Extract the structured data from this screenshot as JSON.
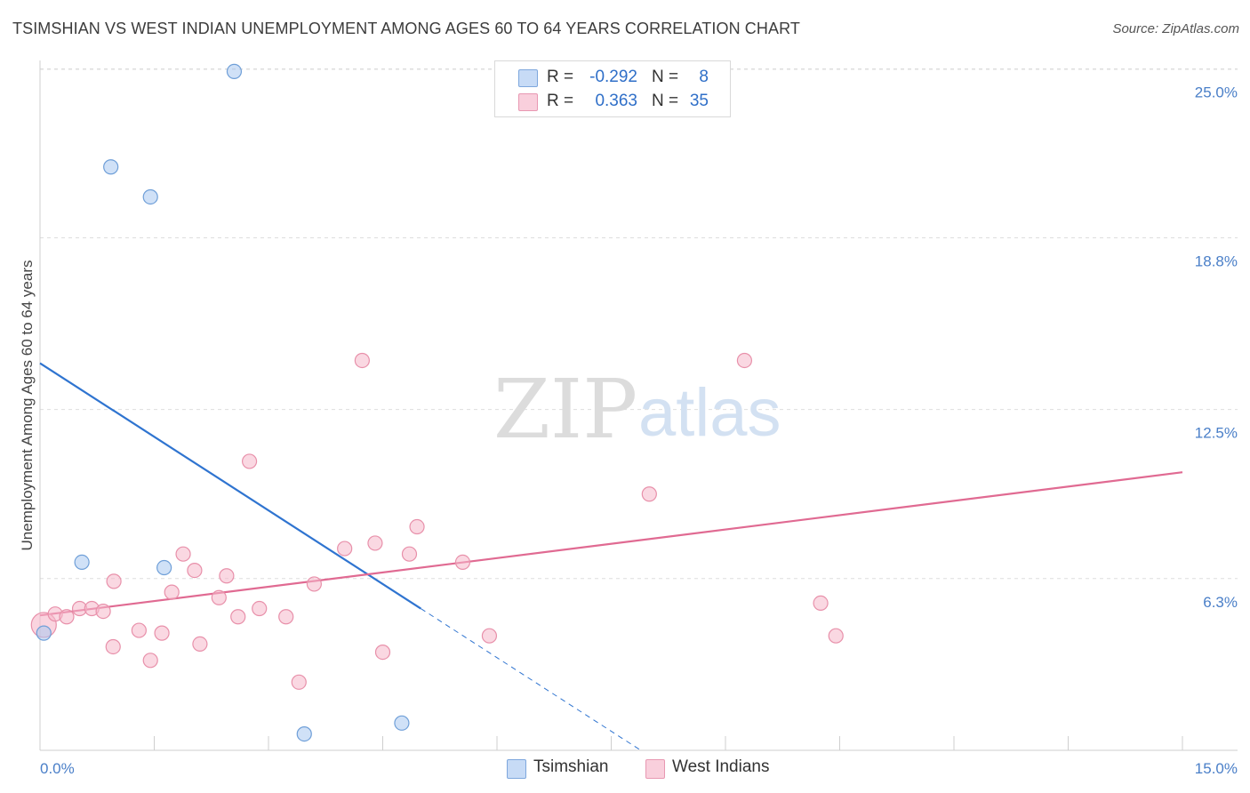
{
  "header": {
    "title": "TSIMSHIAN VS WEST INDIAN UNEMPLOYMENT AMONG AGES 60 TO 64 YEARS CORRELATION CHART",
    "source": "Source: ZipAtlas.com"
  },
  "watermark": {
    "zip": "ZIP",
    "atlas": "atlas"
  },
  "legend": {
    "rows": [
      {
        "r_label": "R =",
        "r_value": "-0.292",
        "n_label": "N =",
        "n_value": "8",
        "color": "#a9c8f0"
      },
      {
        "r_label": "R =",
        "r_value": "0.363",
        "n_label": "N =",
        "n_value": "35",
        "color": "#f6b8ca"
      }
    ]
  },
  "bottom_legend": {
    "items": [
      {
        "label": "Tsimshian",
        "color": "#a9c8f0"
      },
      {
        "label": "West Indians",
        "color": "#f6b8ca"
      }
    ]
  },
  "chart_data": {
    "type": "scatter",
    "title": "TSIMSHIAN VS WEST INDIAN UNEMPLOYMENT AMONG AGES 60 TO 64 YEARS CORRELATION CHART",
    "xlabel": "",
    "ylabel": "Unemployment Among Ages 60 to 64 years",
    "xlim": [
      0,
      15
    ],
    "ylim": [
      0,
      25.5
    ],
    "x_tick_labels": [
      "0.0%",
      "15.0%"
    ],
    "y_ticks": [
      6.3,
      12.5,
      18.8,
      25.0
    ],
    "y_tick_labels": [
      "6.3%",
      "12.5%",
      "18.8%",
      "25.0%"
    ],
    "grid": true,
    "series": [
      {
        "name": "Tsimshian",
        "color": "#a9c8f0",
        "edge_color": "#6f9fd8",
        "line_color": "#2f74d0",
        "points": [
          [
            0.05,
            4.3
          ],
          [
            0.55,
            6.9
          ],
          [
            0.93,
            21.4
          ],
          [
            1.45,
            20.3
          ],
          [
            1.63,
            6.7
          ],
          [
            2.55,
            24.9
          ],
          [
            3.47,
            0.6
          ],
          [
            4.75,
            1.0
          ]
        ],
        "trend": {
          "x0": 0.0,
          "y0": 14.2,
          "x1": 5.0,
          "y1": 5.2,
          "dash_to_x": 7.9
        }
      },
      {
        "name": "West Indians",
        "color": "#f6b8ca",
        "edge_color": "#e890aa",
        "line_color": "#e06a92",
        "points": [
          [
            0.05,
            4.6
          ],
          [
            0.2,
            5.0
          ],
          [
            0.35,
            4.9
          ],
          [
            0.52,
            5.2
          ],
          [
            0.68,
            5.2
          ],
          [
            0.83,
            5.1
          ],
          [
            0.96,
            3.8
          ],
          [
            0.97,
            6.2
          ],
          [
            1.3,
            4.4
          ],
          [
            1.45,
            3.3
          ],
          [
            1.6,
            4.3
          ],
          [
            1.73,
            5.8
          ],
          [
            1.88,
            7.2
          ],
          [
            2.03,
            6.6
          ],
          [
            2.1,
            3.9
          ],
          [
            2.35,
            5.6
          ],
          [
            2.45,
            6.4
          ],
          [
            2.6,
            4.9
          ],
          [
            2.75,
            10.6
          ],
          [
            2.88,
            5.2
          ],
          [
            3.23,
            4.9
          ],
          [
            3.4,
            2.5
          ],
          [
            3.6,
            6.1
          ],
          [
            4.0,
            7.4
          ],
          [
            4.23,
            14.3
          ],
          [
            4.4,
            7.6
          ],
          [
            4.5,
            3.6
          ],
          [
            4.85,
            7.2
          ],
          [
            4.95,
            8.2
          ],
          [
            5.55,
            6.9
          ],
          [
            5.9,
            4.2
          ],
          [
            8.0,
            9.4
          ],
          [
            9.25,
            14.3
          ],
          [
            10.25,
            5.4
          ],
          [
            10.45,
            4.2
          ]
        ],
        "trend": {
          "x0": 0.0,
          "y0": 4.95,
          "x1": 15.0,
          "y1": 10.2
        }
      }
    ]
  }
}
